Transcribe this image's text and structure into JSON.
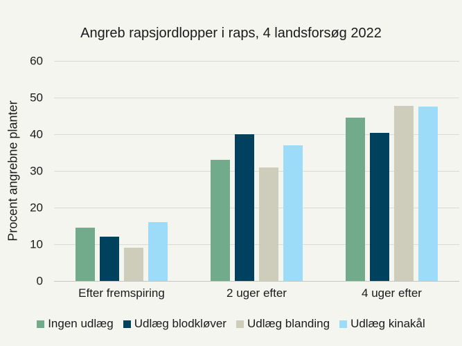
{
  "chart_data": {
    "type": "bar",
    "title": "Angreb rapsjordlopper i raps, 4 landsforsøg 2022",
    "xlabel": "",
    "ylabel": "Procent angrebne planter",
    "categories": [
      "Efter fremspiring",
      "2 uger efter",
      "4 uger efter"
    ],
    "series": [
      {
        "name": "Ingen udlæg",
        "color": "#72ab8b",
        "values": [
          14.5,
          33,
          44.5
        ]
      },
      {
        "name": "Udlæg blodkløver",
        "color": "#00425e",
        "values": [
          12,
          40,
          40.3
        ]
      },
      {
        "name": "Udlæg blanding",
        "color": "#cecdbb",
        "values": [
          9,
          31,
          47.8
        ]
      },
      {
        "name": "Udlæg kinakål",
        "color": "#9ddcf8",
        "values": [
          16,
          37,
          47.6
        ]
      }
    ],
    "ylim": [
      0,
      60
    ],
    "yticks": [
      0,
      10,
      20,
      30,
      40,
      50,
      60
    ],
    "grid": true,
    "legend_position": "bottom",
    "colors": {
      "background": "#f4f5ef",
      "gridline": "#dadad4",
      "zero_line": "#c6c6c0",
      "text": "#1a1a1a"
    }
  }
}
